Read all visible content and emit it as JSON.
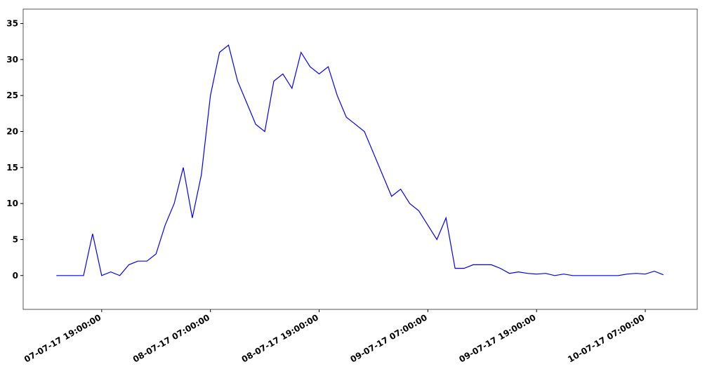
{
  "chart_data": {
    "type": "line",
    "x": [
      "07-07-17 14:00:00",
      "07-07-17 15:00:00",
      "07-07-17 16:00:00",
      "07-07-17 17:00:00",
      "07-07-17 18:00:00",
      "07-07-17 19:00:00",
      "07-07-17 20:00:00",
      "07-07-17 21:00:00",
      "07-07-17 22:00:00",
      "07-07-17 23:00:00",
      "08-07-17 00:00:00",
      "08-07-17 01:00:00",
      "08-07-17 02:00:00",
      "08-07-17 03:00:00",
      "08-07-17 04:00:00",
      "08-07-17 05:00:00",
      "08-07-17 06:00:00",
      "08-07-17 07:00:00",
      "08-07-17 08:00:00",
      "08-07-17 09:00:00",
      "08-07-17 10:00:00",
      "08-07-17 11:00:00",
      "08-07-17 12:00:00",
      "08-07-17 13:00:00",
      "08-07-17 14:00:00",
      "08-07-17 15:00:00",
      "08-07-17 16:00:00",
      "08-07-17 17:00:00",
      "08-07-17 18:00:00",
      "08-07-17 19:00:00",
      "08-07-17 20:00:00",
      "08-07-17 21:00:00",
      "08-07-17 22:00:00",
      "08-07-17 23:00:00",
      "09-07-17 00:00:00",
      "09-07-17 01:00:00",
      "09-07-17 02:00:00",
      "09-07-17 03:00:00",
      "09-07-17 04:00:00",
      "09-07-17 05:00:00",
      "09-07-17 06:00:00",
      "09-07-17 07:00:00",
      "09-07-17 08:00:00",
      "09-07-17 09:00:00",
      "09-07-17 10:00:00",
      "09-07-17 11:00:00",
      "09-07-17 12:00:00",
      "09-07-17 13:00:00",
      "09-07-17 14:00:00",
      "09-07-17 15:00:00",
      "09-07-17 16:00:00",
      "09-07-17 17:00:00",
      "09-07-17 18:00:00",
      "09-07-17 19:00:00",
      "09-07-17 20:00:00",
      "09-07-17 21:00:00",
      "09-07-17 22:00:00",
      "09-07-17 23:00:00",
      "10-07-17 00:00:00",
      "10-07-17 01:00:00",
      "10-07-17 02:00:00",
      "10-07-17 03:00:00",
      "10-07-17 04:00:00",
      "10-07-17 05:00:00",
      "10-07-17 06:00:00",
      "10-07-17 07:00:00",
      "10-07-17 08:00:00",
      "10-07-17 09:00:00"
    ],
    "series": [
      {
        "color": "#0000ff",
        "values": [
          0,
          0,
          0,
          0,
          5.8,
          0,
          0.5,
          0,
          1.5,
          2,
          2,
          3,
          7,
          10,
          15,
          8,
          14,
          25,
          31,
          32,
          27,
          24,
          21,
          20,
          27,
          28,
          26,
          31,
          29,
          28,
          29,
          25,
          22,
          21,
          20,
          17,
          14,
          11,
          12,
          10,
          9,
          7,
          5,
          8,
          1,
          1,
          1.5,
          1.5,
          1.5,
          1,
          0.3,
          0.5,
          0.3,
          0.2,
          0.3,
          0,
          0.2,
          0,
          0,
          0,
          0,
          0,
          0,
          0.2,
          0.3,
          0.2,
          0.6,
          0.1
        ]
      }
    ],
    "xlim": [
      "07-07-17 10:20:00",
      "10-07-17 12:44:00"
    ],
    "xticks": [
      "07-07-17 19:00:00",
      "08-07-17 07:00:00",
      "08-07-17 19:00:00",
      "09-07-17 07:00:00",
      "09-07-17 19:00:00",
      "10-07-17 07:00:00"
    ],
    "ylim": [
      -4.7,
      37
    ],
    "yticks": [
      0,
      5,
      10,
      15,
      20,
      25,
      30,
      35
    ]
  }
}
